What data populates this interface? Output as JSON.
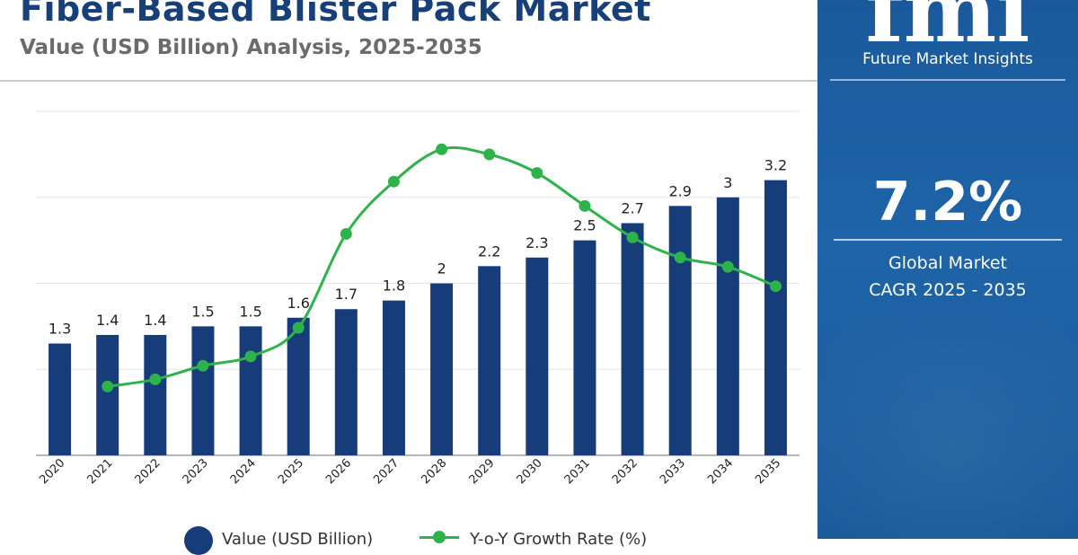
{
  "header": {
    "title": "Fiber-Based Blister Pack Market",
    "subtitle": "Value (USD Billion) Analysis, 2025-2035"
  },
  "brand": {
    "logo_text": "fmi",
    "name": "Future Market Insights"
  },
  "cagr": {
    "value": "7.2%",
    "label_line1": "Global Market",
    "label_line2": "CAGR 2025 - 2035"
  },
  "legend": {
    "value_label": "Value (USD Billion)",
    "growth_label": "Y-o-Y Growth Rate (%)"
  },
  "colors": {
    "bar": "#163d7a",
    "line": "#2db34a",
    "title": "#173f78",
    "panel": "#1b5d9f"
  },
  "chart_data": {
    "type": "bar",
    "title": "Fiber-Based Blister Pack Market",
    "subtitle": "Value (USD Billion) Analysis, 2025-2035",
    "categories": [
      "2020",
      "2021",
      "2022",
      "2023",
      "2024",
      "2025",
      "2026",
      "2027",
      "2028",
      "2029",
      "2030",
      "2031",
      "2032",
      "2033",
      "2034",
      "2035"
    ],
    "series": [
      {
        "name": "Value (USD Billion)",
        "type": "bar",
        "values": [
          1.3,
          1.4,
          1.4,
          1.5,
          1.5,
          1.6,
          1.7,
          1.8,
          2,
          2.2,
          2.3,
          2.5,
          2.7,
          2.9,
          3,
          3.2
        ],
        "labels": [
          "1.3",
          "1.4",
          "1.4",
          "1.5",
          "1.5",
          "1.6",
          "1.7",
          "1.8",
          "2",
          "2.2",
          "2.3",
          "2.5",
          "2.7",
          "2.9",
          "3",
          "3.2"
        ]
      },
      {
        "name": "Y-o-Y Growth Rate (%)",
        "type": "line",
        "values": [
          null,
          3.6,
          4.6,
          6.5,
          7.8,
          11.8,
          24.9,
          32.2,
          36.7,
          36.0,
          33.4,
          28.8,
          24.4,
          21.6,
          20.3,
          17.6
        ]
      }
    ],
    "ylim": [
      0,
      4
    ],
    "y2lim": [
      -6,
      42
    ],
    "grid": true,
    "legend": "bottom"
  }
}
